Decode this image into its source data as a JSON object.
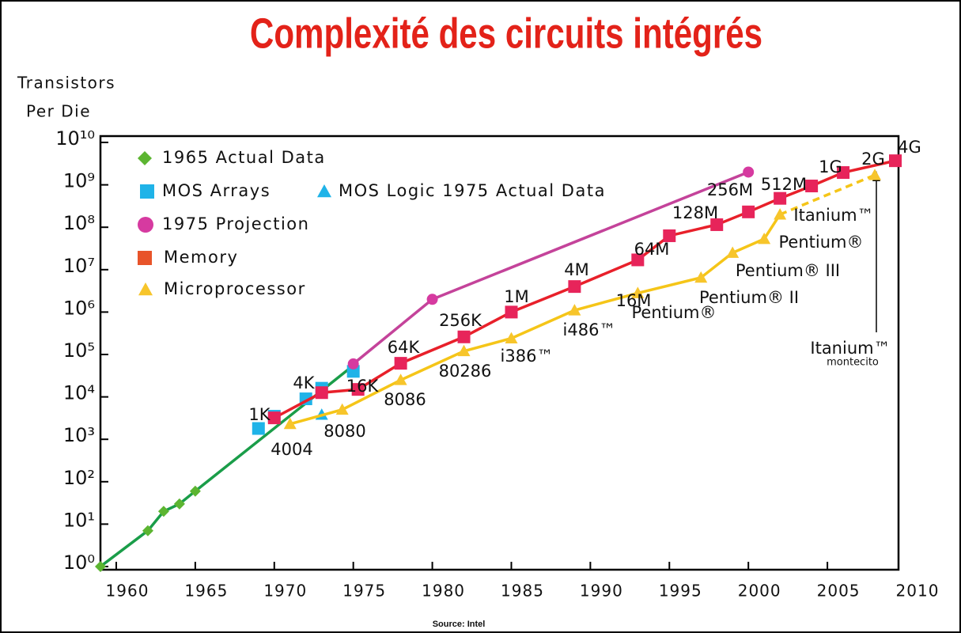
{
  "chart_data": {
    "type": "scatter",
    "title": "Complexité des circuits intégrés",
    "y_label": [
      "Transistors",
      "Per Die"
    ],
    "source": "Source: Intel",
    "log_y": true,
    "xlim": [
      1959,
      2009.5
    ],
    "ylim": [
      1,
      10000000000
    ],
    "xticks": [
      1960,
      1965,
      1970,
      1975,
      1980,
      1985,
      1990,
      1995,
      2000,
      2005,
      2010
    ],
    "yticks": [
      {
        "value": 1,
        "label": "10⁰"
      },
      {
        "value": 10,
        "label": "10¹"
      },
      {
        "value": 100,
        "label": "10²"
      },
      {
        "value": 1000,
        "label": "10³"
      },
      {
        "value": 10000,
        "label": "10⁴"
      },
      {
        "value": 100000,
        "label": "10⁵"
      },
      {
        "value": 1000000,
        "label": "10⁶"
      },
      {
        "value": 10000000,
        "label": "10⁷"
      },
      {
        "value": 100000000,
        "label": "10⁸"
      },
      {
        "value": 1000000000,
        "label": "10⁹"
      },
      {
        "value": 10000000000,
        "label": "10¹⁰"
      }
    ],
    "series": [
      {
        "name": "1965 Actual Data",
        "color": "#5cb531",
        "line_color": "#1a9d49",
        "marker": "diamond",
        "line": true,
        "x": [
          1959,
          1962,
          1963,
          1964,
          1965,
          1975
        ],
        "values": [
          1,
          7,
          20,
          30,
          60,
          55000
        ]
      },
      {
        "name": "MOS Arrays",
        "color": "#1fb3e8",
        "marker": "square",
        "line": false,
        "x": [
          1969,
          1970,
          1972,
          1973,
          1975
        ],
        "values": [
          1800,
          3500,
          9000,
          16000,
          40000
        ]
      },
      {
        "name": "MOS Logic 1975 Actual Data",
        "color": "#1fb3e8",
        "marker": "triangle",
        "line": false,
        "x": [
          1973
        ],
        "values": [
          3800
        ]
      },
      {
        "name": "1975 Projection",
        "color": "#d63aa0",
        "line_color": "#c4439a",
        "marker": "circle",
        "line": true,
        "x": [
          1975,
          1980,
          2000
        ],
        "values": [
          60000,
          2000000,
          2000000000
        ]
      },
      {
        "name": "Memory",
        "color": "#e7245a",
        "legend_color": "#e8542a",
        "line_color": "#e8202a",
        "marker": "square",
        "line": true,
        "x": [
          1970,
          1973,
          1975.3,
          1978,
          1982,
          1985,
          1989,
          1993,
          1995,
          1998,
          2000,
          2002,
          2004,
          2006,
          2009.3
        ],
        "values": [
          3200,
          12600,
          15000,
          62000,
          260000,
          1000000,
          4000000,
          17000000,
          63000000,
          115000000,
          230000000,
          480000000,
          940000000,
          1950000000,
          3700000000
        ]
      },
      {
        "name": "Microprocessor",
        "color": "#f7c52b",
        "line_color": "#f5c518",
        "marker": "triangle",
        "line": true,
        "dashed_segments": [
          10
        ],
        "x": [
          1971,
          1974.3,
          1978,
          1982,
          1985,
          1989,
          1993,
          1997,
          1999,
          2001,
          2002,
          2008
        ],
        "values": [
          2300,
          5000,
          25000,
          120000,
          240000,
          1100000,
          2800000,
          6500000,
          25000000,
          53000000,
          200000000,
          1700000000
        ]
      }
    ],
    "annotations": [
      "1K",
      "4K",
      "16K",
      "64K",
      "256K",
      "1M",
      "4M",
      "16M",
      "64M",
      "128M",
      "256M",
      "512M",
      "1G",
      "2G",
      "4G",
      "4004",
      "8080",
      "8086",
      "80286",
      "i386™",
      "i486™",
      "Pentium®",
      "Pentium® II",
      "Pentium® III",
      "Pentium®",
      "Itanium™",
      "Itanium™",
      "montecito"
    ]
  }
}
